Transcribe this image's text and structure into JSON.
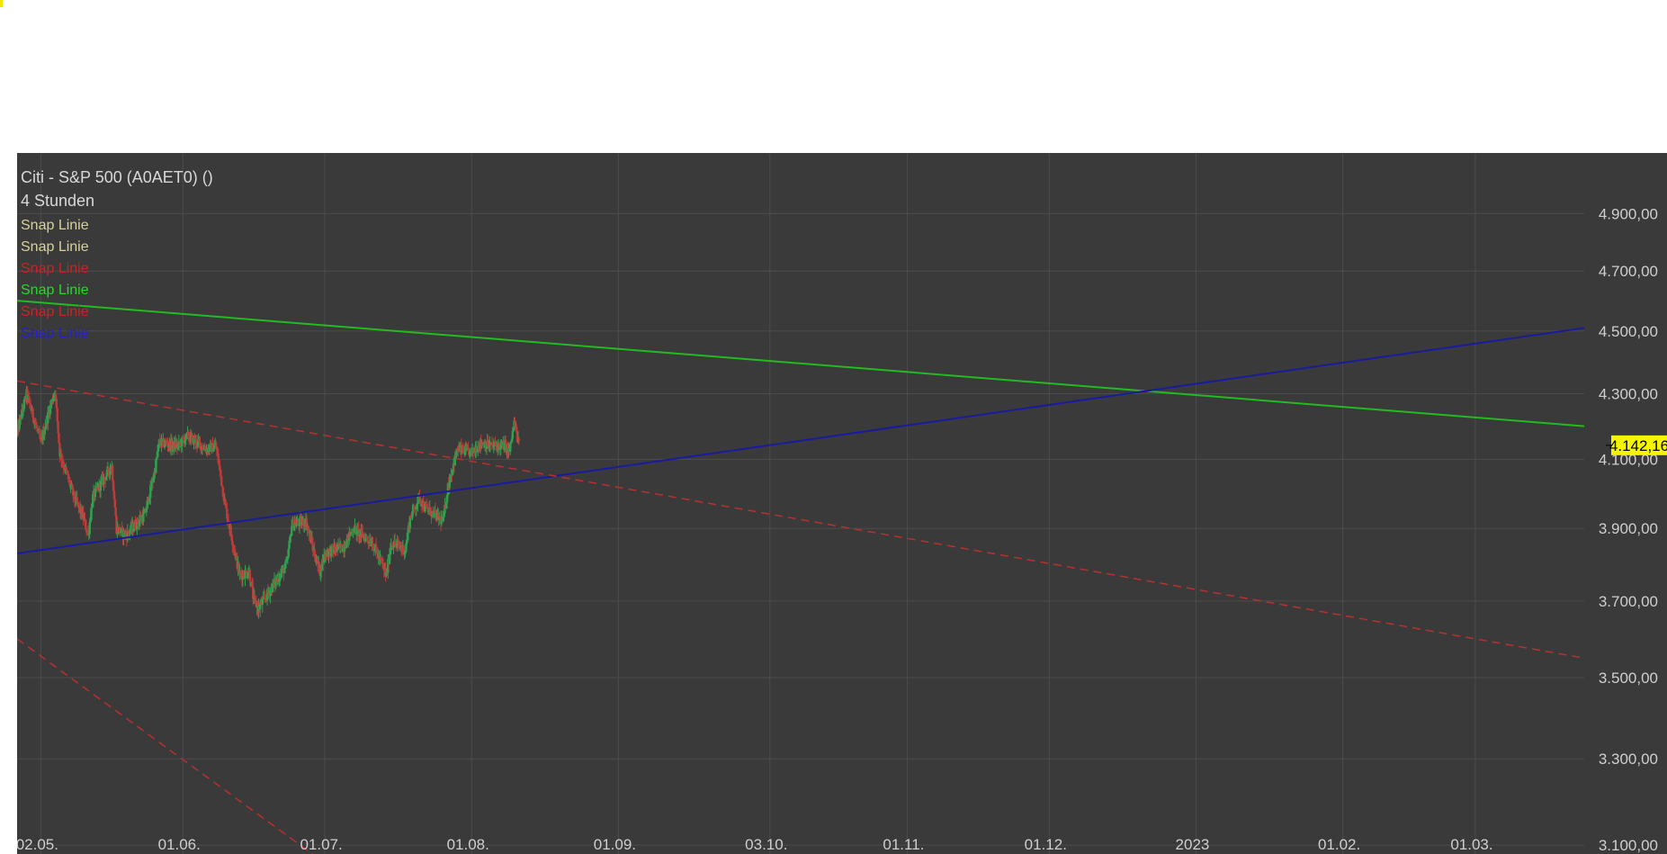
{
  "header": {
    "title": "Citi - S&P 500 (A0AET0) ()",
    "interval": "4 Stunden"
  },
  "legend": [
    {
      "label": "Snap Linie",
      "color": "#d8d29a"
    },
    {
      "label": "Snap Linie",
      "color": "#d8d29a"
    },
    {
      "label": "Snap Linie",
      "color": "#cc2222"
    },
    {
      "label": "Snap Linie",
      "color": "#22dd22"
    },
    {
      "label": "Snap Linie",
      "color": "#cc2222"
    },
    {
      "label": "Snap Linie",
      "color": "#2222cc"
    }
  ],
  "colors": {
    "background": "#3a3a3a",
    "grid": "#4c4c4c",
    "axis_text": "#cfcfcf",
    "candle_up": "#2fa14f",
    "candle_down": "#c03a3a",
    "green_line": "#22bb22",
    "blue_line": "#1a1aa0",
    "red_dashed": "#b83030",
    "price_badge_bg": "#f5f500",
    "price_badge_text": "#000000"
  },
  "chart_data": {
    "type": "candlestick",
    "title": "Citi - S&P 500 (A0AET0) ()",
    "interval": "4 Stunden",
    "x_ticks": [
      "02.05.",
      "01.06.",
      "01.07.",
      "01.08.",
      "01.09.",
      "03.10.",
      "01.11.",
      "01.12.",
      "2023",
      "01.02.",
      "01.03."
    ],
    "x_tick_dates": [
      "2022-05-02",
      "2022-06-01",
      "2022-07-01",
      "2022-08-01",
      "2022-09-01",
      "2022-10-03",
      "2022-11-01",
      "2022-12-01",
      "2023-01-01",
      "2023-02-01",
      "2023-03-01"
    ],
    "x_range": [
      "2022-04-27",
      "2023-03-24"
    ],
    "y_ticks": [
      "4.900,00",
      "4.700,00",
      "4.500,00",
      "4.300,00",
      "4.100,00",
      "3.900,00",
      "3.700,00",
      "3.500,00",
      "3.300,00",
      "3.100,00"
    ],
    "y_tick_values": [
      4900,
      4700,
      4500,
      4300,
      4100,
      3900,
      3700,
      3500,
      3300,
      3100
    ],
    "ylim": [
      3080,
      5120
    ],
    "y_scale": "log",
    "grid": true,
    "last_price": 4142.16,
    "last_price_label": "4.142,16",
    "price_path": [
      [
        "2022-04-27",
        4180
      ],
      [
        "2022-04-28",
        4240
      ],
      [
        "2022-04-29",
        4300
      ],
      [
        "2022-05-02",
        4150
      ],
      [
        "2022-05-04",
        4260
      ],
      [
        "2022-05-05",
        4310
      ],
      [
        "2022-05-06",
        4120
      ],
      [
        "2022-05-09",
        3990
      ],
      [
        "2022-05-11",
        3930
      ],
      [
        "2022-05-12",
        3880
      ],
      [
        "2022-05-13",
        3990
      ],
      [
        "2022-05-17",
        4080
      ],
      [
        "2022-05-18",
        3900
      ],
      [
        "2022-05-20",
        3880
      ],
      [
        "2022-05-24",
        3940
      ],
      [
        "2022-05-26",
        4060
      ],
      [
        "2022-05-27",
        4150
      ],
      [
        "2022-05-31",
        4140
      ],
      [
        "2022-06-02",
        4170
      ],
      [
        "2022-06-06",
        4130
      ],
      [
        "2022-06-08",
        4140
      ],
      [
        "2022-06-10",
        3960
      ],
      [
        "2022-06-13",
        3770
      ],
      [
        "2022-06-15",
        3780
      ],
      [
        "2022-06-16",
        3700
      ],
      [
        "2022-06-17",
        3680
      ],
      [
        "2022-06-21",
        3760
      ],
      [
        "2022-06-23",
        3800
      ],
      [
        "2022-06-24",
        3910
      ],
      [
        "2022-06-27",
        3920
      ],
      [
        "2022-06-29",
        3820
      ],
      [
        "2022-06-30",
        3780
      ],
      [
        "2022-07-01",
        3830
      ],
      [
        "2022-07-05",
        3850
      ],
      [
        "2022-07-07",
        3900
      ],
      [
        "2022-07-08",
        3890
      ],
      [
        "2022-07-11",
        3860
      ],
      [
        "2022-07-13",
        3800
      ],
      [
        "2022-07-14",
        3770
      ],
      [
        "2022-07-15",
        3860
      ],
      [
        "2022-07-18",
        3840
      ],
      [
        "2022-07-19",
        3930
      ],
      [
        "2022-07-21",
        3990
      ],
      [
        "2022-07-22",
        3960
      ],
      [
        "2022-07-26",
        3920
      ],
      [
        "2022-07-27",
        4020
      ],
      [
        "2022-07-29",
        4130
      ],
      [
        "2022-08-01",
        4120
      ],
      [
        "2022-08-03",
        4150
      ],
      [
        "2022-08-05",
        4140
      ],
      [
        "2022-08-08",
        4140
      ],
      [
        "2022-08-09",
        4122
      ],
      [
        "2022-08-10",
        4210
      ],
      [
        "2022-08-11",
        4142.16
      ]
    ],
    "trendlines": [
      {
        "kind": "green",
        "style": "solid",
        "from": [
          "2022-04-27",
          4600
        ],
        "to": [
          "2023-03-24",
          4200
        ]
      },
      {
        "kind": "blue",
        "style": "solid",
        "from": [
          "2022-04-27",
          3830
        ],
        "to": [
          "2023-03-24",
          4510
        ]
      },
      {
        "kind": "red",
        "style": "dashed",
        "from": [
          "2022-04-27",
          4340
        ],
        "to": [
          "2023-03-24",
          3550
        ]
      },
      {
        "kind": "red",
        "style": "dashed",
        "from": [
          "2022-04-27",
          3600
        ],
        "to": [
          "2022-07-01",
          3060
        ]
      }
    ]
  }
}
